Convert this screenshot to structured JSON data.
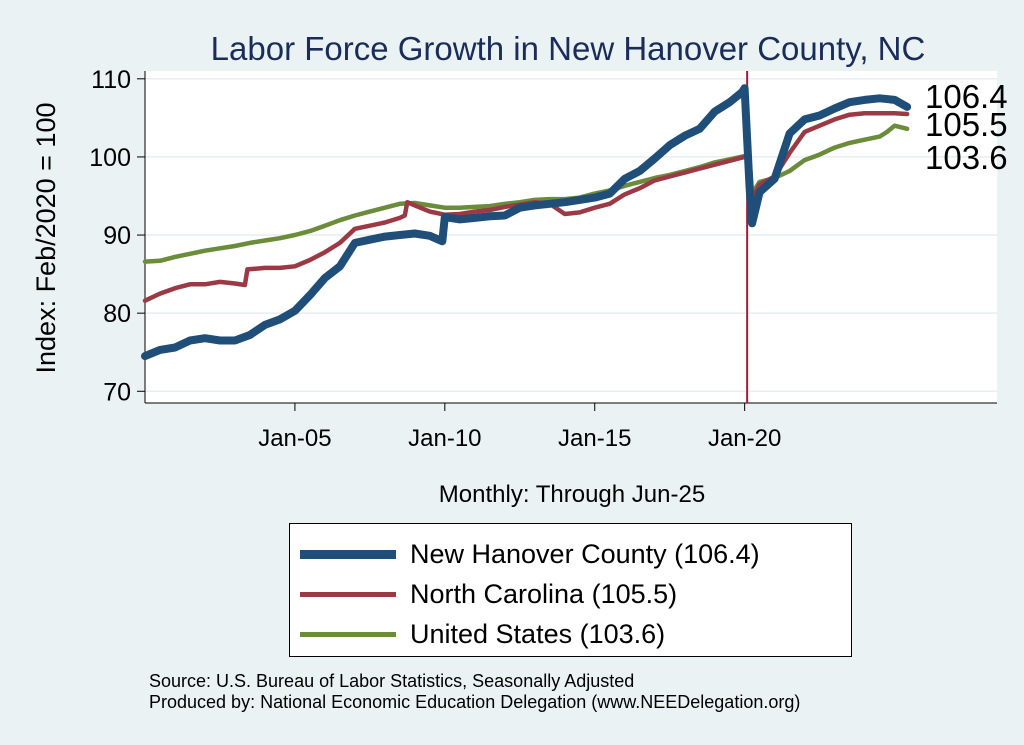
{
  "colors": {
    "background": "#eaf2f3",
    "plot_background": "#ffffff",
    "title": "#1a2d5a",
    "vline": "#a01b3a",
    "new_hanover": "#1f4e79",
    "north_carolina": "#9b3a45",
    "united_states": "#6b8c3a"
  },
  "chart_data": {
    "type": "line",
    "title": "Labor Force Growth in New Hanover  County, NC",
    "xlabel": "Monthly: Through Jun-25",
    "ylabel": "Index: Feb/2020 = 100",
    "xlim": [
      "2000-01",
      "2028-06"
    ],
    "ylim": [
      68.5,
      111
    ],
    "yticks": [
      70,
      80,
      90,
      100,
      110
    ],
    "xticks": [
      {
        "date": "2005-01",
        "label": "Jan-05"
      },
      {
        "date": "2010-01",
        "label": "Jan-10"
      },
      {
        "date": "2015-01",
        "label": "Jan-15"
      },
      {
        "date": "2020-01",
        "label": "Jan-20"
      }
    ],
    "vline": "2020-02",
    "grid": true,
    "legend_position": "bottom",
    "end_labels": [
      "106.4",
      "105.5",
      "103.6"
    ],
    "series": [
      {
        "name": "New Hanover  County (106.4)",
        "color": "#1f4e79",
        "width": 8,
        "points": [
          [
            "2000-01",
            74.5
          ],
          [
            "2000-07",
            75.3
          ],
          [
            "2001-01",
            75.6
          ],
          [
            "2001-07",
            76.5
          ],
          [
            "2002-01",
            76.8
          ],
          [
            "2002-07",
            76.5
          ],
          [
            "2003-01",
            76.5
          ],
          [
            "2003-07",
            77.2
          ],
          [
            "2004-01",
            78.5
          ],
          [
            "2004-07",
            79.2
          ],
          [
            "2005-01",
            80.3
          ],
          [
            "2005-07",
            82.3
          ],
          [
            "2006-01",
            84.5
          ],
          [
            "2006-07",
            86.0
          ],
          [
            "2007-01",
            89.0
          ],
          [
            "2007-07",
            89.4
          ],
          [
            "2008-01",
            89.8
          ],
          [
            "2008-07",
            90.0
          ],
          [
            "2009-01",
            90.2
          ],
          [
            "2009-07",
            89.9
          ],
          [
            "2009-12",
            89.2
          ],
          [
            "2010-01",
            92.3
          ],
          [
            "2010-07",
            92.0
          ],
          [
            "2011-01",
            92.2
          ],
          [
            "2011-07",
            92.4
          ],
          [
            "2012-01",
            92.5
          ],
          [
            "2012-07",
            93.5
          ],
          [
            "2013-01",
            93.8
          ],
          [
            "2013-07",
            94.0
          ],
          [
            "2014-01",
            94.2
          ],
          [
            "2014-07",
            94.5
          ],
          [
            "2015-01",
            94.8
          ],
          [
            "2015-07",
            95.3
          ],
          [
            "2016-01",
            97.2
          ],
          [
            "2016-07",
            98.2
          ],
          [
            "2017-01",
            99.8
          ],
          [
            "2017-07",
            101.5
          ],
          [
            "2018-01",
            102.7
          ],
          [
            "2018-07",
            103.6
          ],
          [
            "2019-01",
            105.8
          ],
          [
            "2019-07",
            107.0
          ],
          [
            "2019-12",
            108.3
          ],
          [
            "2020-01",
            108.8
          ],
          [
            "2020-03",
            96.0
          ],
          [
            "2020-04",
            91.5
          ],
          [
            "2020-07",
            95.5
          ],
          [
            "2021-01",
            97.2
          ],
          [
            "2021-07",
            103.0
          ],
          [
            "2022-01",
            104.8
          ],
          [
            "2022-07",
            105.3
          ],
          [
            "2023-01",
            106.2
          ],
          [
            "2023-07",
            107.0
          ],
          [
            "2024-01",
            107.3
          ],
          [
            "2024-07",
            107.5
          ],
          [
            "2025-01",
            107.3
          ],
          [
            "2025-06",
            106.4
          ]
        ]
      },
      {
        "name": "North Carolina (105.5)",
        "color": "#9b3a45",
        "width": 4.5,
        "points": [
          [
            "2000-01",
            81.6
          ],
          [
            "2000-07",
            82.5
          ],
          [
            "2001-01",
            83.2
          ],
          [
            "2001-07",
            83.7
          ],
          [
            "2002-01",
            83.7
          ],
          [
            "2002-07",
            84.0
          ],
          [
            "2003-01",
            83.8
          ],
          [
            "2003-05",
            83.6
          ],
          [
            "2003-06",
            85.6
          ],
          [
            "2004-01",
            85.8
          ],
          [
            "2004-07",
            85.8
          ],
          [
            "2005-01",
            86.0
          ],
          [
            "2005-07",
            86.8
          ],
          [
            "2006-01",
            87.8
          ],
          [
            "2006-07",
            89.0
          ],
          [
            "2007-01",
            90.8
          ],
          [
            "2007-07",
            91.2
          ],
          [
            "2008-01",
            91.6
          ],
          [
            "2008-07",
            92.2
          ],
          [
            "2008-09",
            92.5
          ],
          [
            "2008-10",
            94.2
          ],
          [
            "2009-01",
            93.8
          ],
          [
            "2009-07",
            93.0
          ],
          [
            "2010-01",
            92.6
          ],
          [
            "2010-07",
            92.7
          ],
          [
            "2011-01",
            93.0
          ],
          [
            "2011-07",
            93.2
          ],
          [
            "2012-01",
            93.6
          ],
          [
            "2012-07",
            93.9
          ],
          [
            "2013-01",
            94.2
          ],
          [
            "2013-07",
            94.0
          ],
          [
            "2014-01",
            92.7
          ],
          [
            "2014-07",
            92.9
          ],
          [
            "2015-01",
            93.5
          ],
          [
            "2015-07",
            94.0
          ],
          [
            "2016-01",
            95.2
          ],
          [
            "2016-07",
            96.0
          ],
          [
            "2017-01",
            97.0
          ],
          [
            "2017-07",
            97.5
          ],
          [
            "2018-01",
            98.0
          ],
          [
            "2018-07",
            98.5
          ],
          [
            "2019-01",
            99.0
          ],
          [
            "2019-07",
            99.5
          ],
          [
            "2020-01",
            100.0
          ],
          [
            "2020-03",
            99.5
          ],
          [
            "2020-04",
            94.5
          ],
          [
            "2020-07",
            96.5
          ],
          [
            "2021-01",
            97.5
          ],
          [
            "2021-07",
            100.5
          ],
          [
            "2022-01",
            103.2
          ],
          [
            "2022-07",
            104.0
          ],
          [
            "2023-01",
            104.8
          ],
          [
            "2023-07",
            105.4
          ],
          [
            "2024-01",
            105.6
          ],
          [
            "2024-07",
            105.6
          ],
          [
            "2025-01",
            105.6
          ],
          [
            "2025-06",
            105.5
          ]
        ]
      },
      {
        "name": "United States (103.6)",
        "color": "#6b8c3a",
        "width": 4.5,
        "points": [
          [
            "2000-01",
            86.6
          ],
          [
            "2000-07",
            86.7
          ],
          [
            "2001-01",
            87.2
          ],
          [
            "2001-07",
            87.6
          ],
          [
            "2002-01",
            88.0
          ],
          [
            "2002-07",
            88.3
          ],
          [
            "2003-01",
            88.6
          ],
          [
            "2003-07",
            89.0
          ],
          [
            "2004-01",
            89.3
          ],
          [
            "2004-07",
            89.6
          ],
          [
            "2005-01",
            90.0
          ],
          [
            "2005-07",
            90.5
          ],
          [
            "2006-01",
            91.2
          ],
          [
            "2006-07",
            91.9
          ],
          [
            "2007-01",
            92.5
          ],
          [
            "2007-07",
            93.0
          ],
          [
            "2008-01",
            93.5
          ],
          [
            "2008-07",
            94.0
          ],
          [
            "2009-01",
            94.1
          ],
          [
            "2009-07",
            93.8
          ],
          [
            "2010-01",
            93.5
          ],
          [
            "2010-07",
            93.5
          ],
          [
            "2011-01",
            93.6
          ],
          [
            "2011-07",
            93.7
          ],
          [
            "2012-01",
            94.0
          ],
          [
            "2012-07",
            94.2
          ],
          [
            "2013-01",
            94.5
          ],
          [
            "2013-07",
            94.6
          ],
          [
            "2014-01",
            94.6
          ],
          [
            "2014-07",
            94.8
          ],
          [
            "2015-01",
            95.3
          ],
          [
            "2015-07",
            95.7
          ],
          [
            "2016-01",
            96.3
          ],
          [
            "2016-07",
            96.8
          ],
          [
            "2017-01",
            97.3
          ],
          [
            "2017-07",
            97.7
          ],
          [
            "2018-01",
            98.2
          ],
          [
            "2018-07",
            98.7
          ],
          [
            "2019-01",
            99.3
          ],
          [
            "2019-07",
            99.7
          ],
          [
            "2020-01",
            100.1
          ],
          [
            "2020-03",
            99.5
          ],
          [
            "2020-04",
            95.3
          ],
          [
            "2020-07",
            96.8
          ],
          [
            "2021-01",
            97.3
          ],
          [
            "2021-07",
            98.2
          ],
          [
            "2022-01",
            99.6
          ],
          [
            "2022-07",
            100.3
          ],
          [
            "2023-01",
            101.2
          ],
          [
            "2023-07",
            101.8
          ],
          [
            "2024-01",
            102.2
          ],
          [
            "2024-07",
            102.6
          ],
          [
            "2024-10",
            103.2
          ],
          [
            "2025-01",
            104.0
          ],
          [
            "2025-06",
            103.6
          ]
        ]
      }
    ]
  },
  "legend": {
    "items": [
      {
        "label": "New Hanover  County (106.4)"
      },
      {
        "label": "North Carolina (105.5)"
      },
      {
        "label": "United States (103.6)"
      }
    ]
  },
  "footer": {
    "source": "Source: U.S. Bureau of Labor Statistics, Seasonally Adjusted",
    "produced": "Produced by: National Economic Education Delegation (www.NEEDelegation.org)"
  }
}
